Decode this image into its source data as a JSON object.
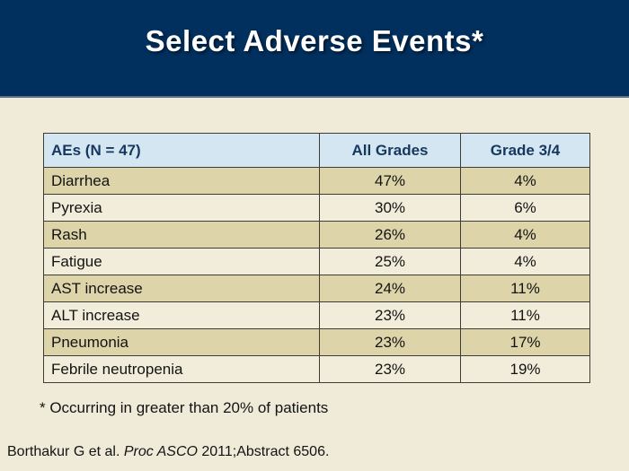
{
  "slide": {
    "title": "Select Adverse Events*",
    "footnote": "* Occurring in greater than 20% of patients",
    "citation": {
      "prefix": "Borthakur G et al. ",
      "italic": "Proc ASCO",
      "suffix": " 2011;Abstract 6506."
    }
  },
  "table": {
    "columns": [
      "AEs (N = 47)",
      "All Grades",
      "Grade 3/4"
    ],
    "rows": [
      {
        "ae": "Diarrhea",
        "all": "47%",
        "g34": "4%"
      },
      {
        "ae": "Pyrexia",
        "all": "30%",
        "g34": "6%"
      },
      {
        "ae": "Rash",
        "all": "26%",
        "g34": "4%"
      },
      {
        "ae": "Fatigue",
        "all": "25%",
        "g34": "4%"
      },
      {
        "ae": "AST increase",
        "all": "24%",
        "g34": "11%"
      },
      {
        "ae": "ALT increase",
        "all": "23%",
        "g34": "11%"
      },
      {
        "ae": "Pneumonia",
        "all": "23%",
        "g34": "17%"
      },
      {
        "ae": "Febrile neutropenia",
        "all": "23%",
        "g34": "19%"
      }
    ]
  },
  "colors": {
    "title_band": "#01305f",
    "title_band_edge": "#5e708e",
    "page_background": "#f0ebd8",
    "table_header_background": "#d3e6f2",
    "table_header_text": "#17375e",
    "row_tan": "#ddd4a9",
    "row_cream": "#f1edda",
    "border": "#3d3d35",
    "title_text": "#ffffff",
    "body_text": "#131313"
  },
  "chart_data": {
    "type": "table",
    "title": "Select Adverse Events*",
    "categories": [
      "Diarrhea",
      "Pyrexia",
      "Rash",
      "Fatigue",
      "AST increase",
      "ALT increase",
      "Pneumonia",
      "Febrile neutropenia"
    ],
    "series": [
      {
        "name": "All Grades",
        "values": [
          47,
          30,
          26,
          25,
          24,
          23,
          23,
          23
        ]
      },
      {
        "name": "Grade 3/4",
        "values": [
          4,
          6,
          4,
          4,
          11,
          11,
          17,
          19
        ]
      }
    ],
    "unit": "%",
    "note": "N = 47"
  }
}
